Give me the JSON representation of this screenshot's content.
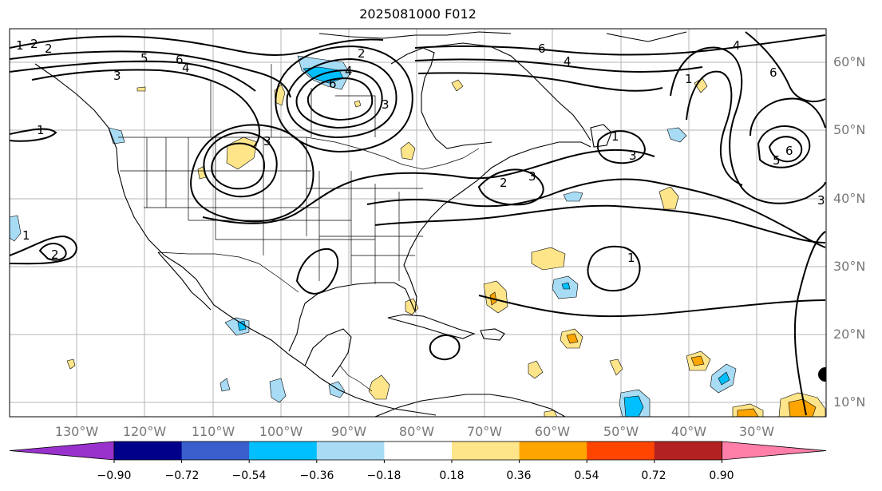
{
  "title": "2025081000 F012",
  "map": {
    "lat_labels": [
      "60°N",
      "50°N",
      "40°N",
      "30°N",
      "20°N",
      "10°N"
    ],
    "lon_labels": [
      "130°W",
      "120°W",
      "110°W",
      "100°W",
      "90°W",
      "80°W",
      "70°W",
      "60°W",
      "50°W",
      "40°W",
      "30°W"
    ],
    "grid": true,
    "contour_labels": [
      "2",
      "5",
      "6",
      "4",
      "3",
      "1",
      "2",
      "4",
      "6",
      "3",
      "6",
      "4",
      "1",
      "2",
      "3",
      "1",
      "2",
      "1",
      "4",
      "3",
      "1",
      "6",
      "5",
      "6",
      "3",
      "1",
      "2",
      "3",
      "1"
    ]
  },
  "colorbar": {
    "ticks": [
      "−0.90",
      "−0.72",
      "−0.54",
      "−0.36",
      "−0.18",
      "0.18",
      "0.36",
      "0.54",
      "0.72",
      "0.90"
    ],
    "colors": [
      "#9932cc",
      "#00008b",
      "#3a5fcd",
      "#00bfff",
      "#a8dcf5",
      "#ffffff",
      "#ffe58a",
      "#ffa500",
      "#ff4500",
      "#b22222",
      "#ff7fa8"
    ]
  }
}
